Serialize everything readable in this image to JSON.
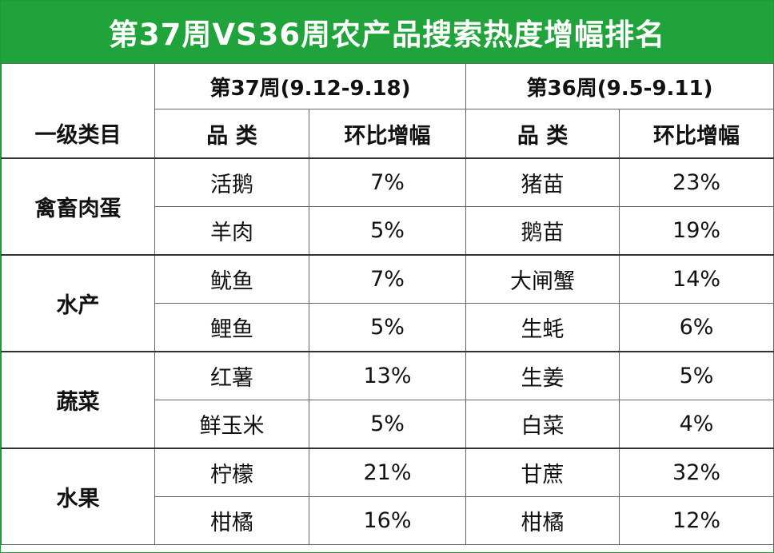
{
  "title": "第37周VS36周农产品搜索热度增幅排名",
  "periods": {
    "week37": "第37周(9.12-9.18)",
    "week36": "第36周(9.5-9.11)"
  },
  "headers": {
    "category": "一级类目",
    "item_w37": "品 类",
    "change_w37": "环比增幅",
    "item_w36": "品 类",
    "change_w36": "环比增幅"
  },
  "groups": [
    {
      "category": "禽畜肉蛋",
      "rows": [
        {
          "w37_item": "活鹅",
          "w37_change": "7%",
          "w36_item": "猪苗",
          "w36_change": "23%"
        },
        {
          "w37_item": "羊肉",
          "w37_change": "5%",
          "w36_item": "鹅苗",
          "w36_change": "19%"
        }
      ]
    },
    {
      "category": "水产",
      "rows": [
        {
          "w37_item": "鱿鱼",
          "w37_change": "7%",
          "w36_item": "大闸蟹",
          "w36_change": "14%"
        },
        {
          "w37_item": "鲤鱼",
          "w37_change": "5%",
          "w36_item": "生蚝",
          "w36_change": "6%"
        }
      ]
    },
    {
      "category": "蔬菜",
      "rows": [
        {
          "w37_item": "红薯",
          "w37_change": "13%",
          "w36_item": "生姜",
          "w36_change": "5%"
        },
        {
          "w37_item": "鲜玉米",
          "w37_change": "5%",
          "w36_item": "白菜",
          "w36_change": "4%"
        }
      ]
    },
    {
      "category": "水果",
      "rows": [
        {
          "w37_item": "柠檬",
          "w37_change": "21%",
          "w36_item": "甘蔗",
          "w36_change": "32%"
        },
        {
          "w37_item": "柑橘",
          "w37_change": "16%",
          "w36_item": "柑橘",
          "w36_change": "12%"
        }
      ]
    }
  ],
  "colors": {
    "title_bg": "#20a33a",
    "title_text": "#ffffff"
  }
}
